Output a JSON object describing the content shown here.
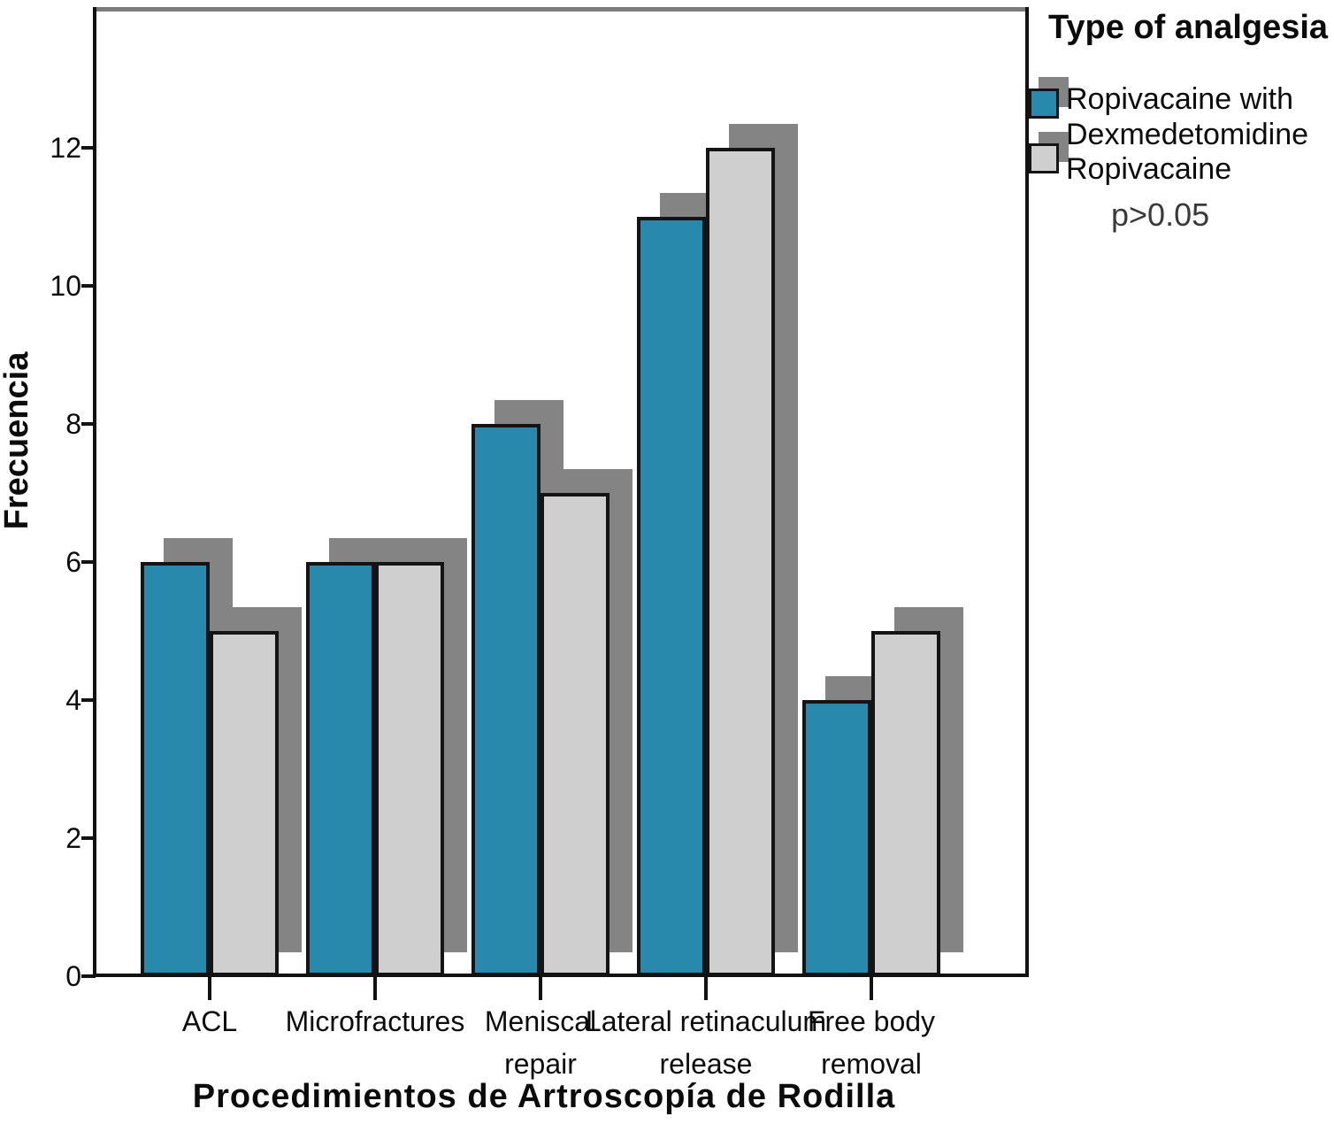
{
  "chart_data": {
    "type": "bar",
    "title": "",
    "xlabel": "Procedimientos de Artroscopía de Rodilla",
    "ylabel": "Frecuencia",
    "categories": [
      "ACL",
      "Microfractures",
      "Meniscal repair",
      "Lateral retinaculum release",
      "Free body removal"
    ],
    "category_label_lines": [
      [
        "ACL"
      ],
      [
        "Microfractures"
      ],
      [
        "Meniscal",
        "repair"
      ],
      [
        "Lateral retinaculum",
        "release"
      ],
      [
        "Free body",
        "removal"
      ]
    ],
    "series": [
      {
        "name": "Ropivacaine with Dexmedetomidine",
        "color": "#2889ac",
        "values": [
          6,
          6,
          8,
          11,
          4
        ]
      },
      {
        "name": "Ropivacaine",
        "color": "#cfcfcf",
        "values": [
          5,
          6,
          7,
          12,
          5
        ]
      }
    ],
    "yticks": [
      0,
      2,
      4,
      6,
      8,
      10,
      12
    ],
    "ylim": [
      0,
      14
    ],
    "grid": false,
    "bar_outline_color": "#141414",
    "shadow_color": "#848484",
    "frame_top_color": "#7b7b7b",
    "frame_color": "#121212",
    "legend": {
      "title": "Type of analgesia",
      "items": [
        {
          "line1": "Ropivacaine with",
          "line2": "Dexmedetomidine"
        },
        {
          "line1": "Ropivacaine"
        }
      ],
      "note": "p>0.05"
    }
  }
}
